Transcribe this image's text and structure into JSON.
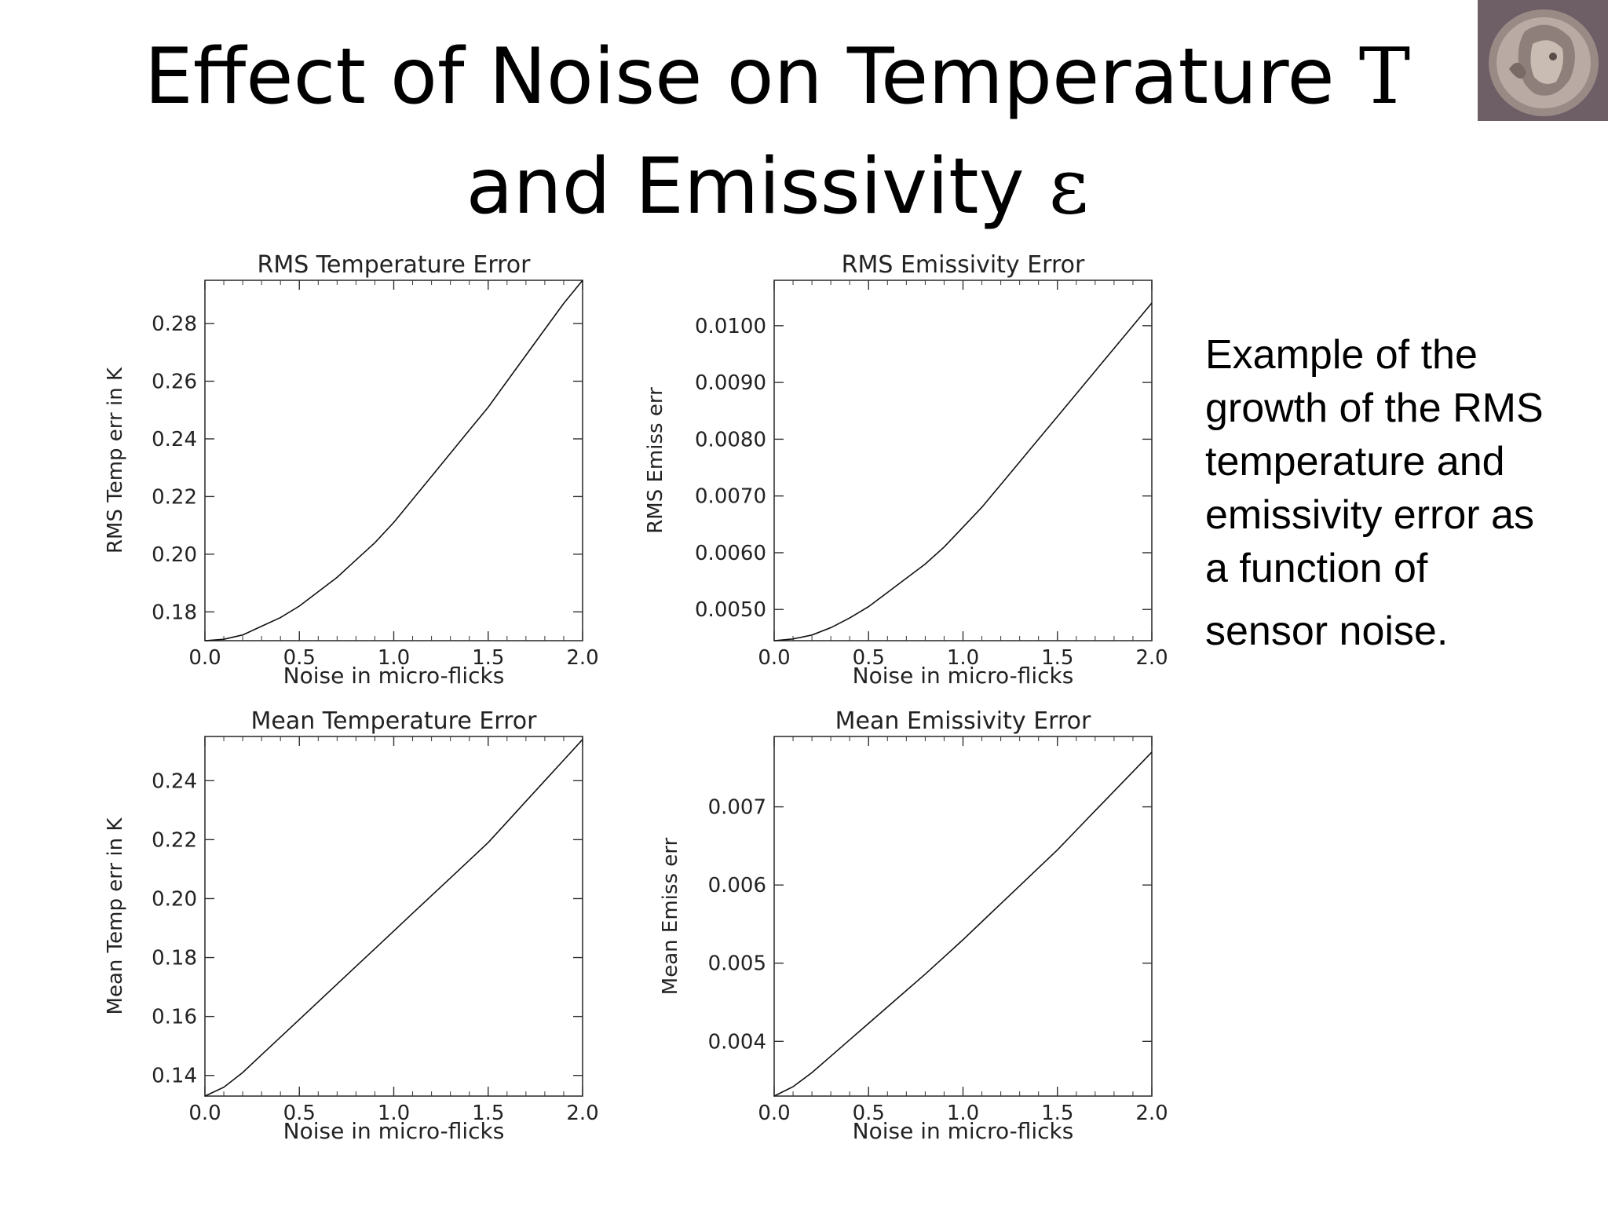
{
  "slide": {
    "title_line1": "Effect of Noise on Temperature ",
    "title_sym1": "T",
    "title_line2": "and Emissivity ",
    "title_sym2": "ε",
    "caption_lines": [
      "Example of the",
      "growth of the RMS",
      "temperature and",
      "emissivity error as",
      "a function of",
      "sensor noise."
    ]
  },
  "chart_data": [
    {
      "type": "line",
      "title": "RMS Temperature Error",
      "xlabel": "Noise in micro-flicks",
      "ylabel": "RMS Temp err in K",
      "xlim": [
        0,
        2
      ],
      "ylim": [
        0.17,
        0.295
      ],
      "xticks": [
        "0.0",
        "0.5",
        "1.0",
        "1.5",
        "2.0"
      ],
      "yticks": [
        "0.18",
        "0.20",
        "0.22",
        "0.24",
        "0.26",
        "0.28"
      ],
      "x": [
        0.0,
        0.1,
        0.2,
        0.3,
        0.4,
        0.5,
        0.6,
        0.7,
        0.8,
        0.9,
        1.0,
        1.1,
        1.2,
        1.3,
        1.4,
        1.5,
        1.6,
        1.7,
        1.8,
        1.9,
        2.0
      ],
      "series": [
        {
          "values": [
            0.17,
            0.1705,
            0.172,
            0.175,
            0.178,
            0.182,
            0.187,
            0.192,
            0.198,
            0.204,
            0.211,
            0.219,
            0.227,
            0.235,
            0.243,
            0.251,
            0.26,
            0.269,
            0.278,
            0.287,
            0.295
          ]
        }
      ]
    },
    {
      "type": "line",
      "title": "RMS Emissivity Error",
      "xlabel": "Noise in micro-flicks",
      "ylabel": "RMS Emiss err",
      "xlim": [
        0,
        2
      ],
      "ylim": [
        0.00445,
        0.0108
      ],
      "xticks": [
        "0.0",
        "0.5",
        "1.0",
        "1.5",
        "2.0"
      ],
      "yticks": [
        "0.0050",
        "0.0060",
        "0.0070",
        "0.0080",
        "0.0090",
        "0.0100"
      ],
      "x": [
        0.0,
        0.1,
        0.2,
        0.3,
        0.4,
        0.5,
        0.6,
        0.7,
        0.8,
        0.9,
        1.0,
        1.1,
        1.2,
        1.3,
        1.4,
        1.5,
        1.6,
        1.7,
        1.8,
        1.9,
        2.0
      ],
      "series": [
        {
          "values": [
            0.00445,
            0.00448,
            0.00455,
            0.00468,
            0.00485,
            0.00505,
            0.0053,
            0.00555,
            0.0058,
            0.0061,
            0.00645,
            0.0068,
            0.0072,
            0.0076,
            0.008,
            0.0084,
            0.0088,
            0.0092,
            0.0096,
            0.01,
            0.0104
          ]
        }
      ]
    },
    {
      "type": "line",
      "title": "Mean Temperature Error",
      "xlabel": "Noise in micro-flicks",
      "ylabel": "Mean Temp err in K",
      "xlim": [
        0,
        2
      ],
      "ylim": [
        0.133,
        0.255
      ],
      "xticks": [
        "0.0",
        "0.5",
        "1.0",
        "1.5",
        "2.0"
      ],
      "yticks": [
        "0.14",
        "0.16",
        "0.18",
        "0.20",
        "0.22",
        "0.24"
      ],
      "x": [
        0.0,
        0.1,
        0.2,
        0.3,
        0.4,
        0.5,
        0.6,
        0.7,
        0.8,
        0.9,
        1.0,
        1.1,
        1.2,
        1.3,
        1.4,
        1.5,
        1.6,
        1.7,
        1.8,
        1.9,
        2.0
      ],
      "series": [
        {
          "values": [
            0.133,
            0.136,
            0.141,
            0.147,
            0.153,
            0.159,
            0.165,
            0.171,
            0.177,
            0.183,
            0.189,
            0.195,
            0.201,
            0.207,
            0.213,
            0.219,
            0.226,
            0.233,
            0.24,
            0.247,
            0.254
          ]
        }
      ]
    },
    {
      "type": "line",
      "title": "Mean Emissivity Error",
      "xlabel": "Noise in micro-flicks",
      "ylabel": "Mean Emiss err",
      "xlim": [
        0,
        2
      ],
      "ylim": [
        0.0033,
        0.0079
      ],
      "xticks": [
        "0.0",
        "0.5",
        "1.0",
        "1.5",
        "2.0"
      ],
      "yticks": [
        "0.004",
        "0.005",
        "0.006",
        "0.007"
      ],
      "x": [
        0.0,
        0.1,
        0.2,
        0.3,
        0.4,
        0.5,
        0.6,
        0.7,
        0.8,
        0.9,
        1.0,
        1.1,
        1.2,
        1.3,
        1.4,
        1.5,
        1.6,
        1.7,
        1.8,
        1.9,
        2.0
      ],
      "series": [
        {
          "values": [
            0.0033,
            0.00342,
            0.0036,
            0.00381,
            0.00402,
            0.00423,
            0.00444,
            0.00465,
            0.00486,
            0.00508,
            0.0053,
            0.00553,
            0.00576,
            0.00599,
            0.00622,
            0.00645,
            0.0067,
            0.00695,
            0.0072,
            0.00745,
            0.0077
          ]
        }
      ]
    }
  ]
}
